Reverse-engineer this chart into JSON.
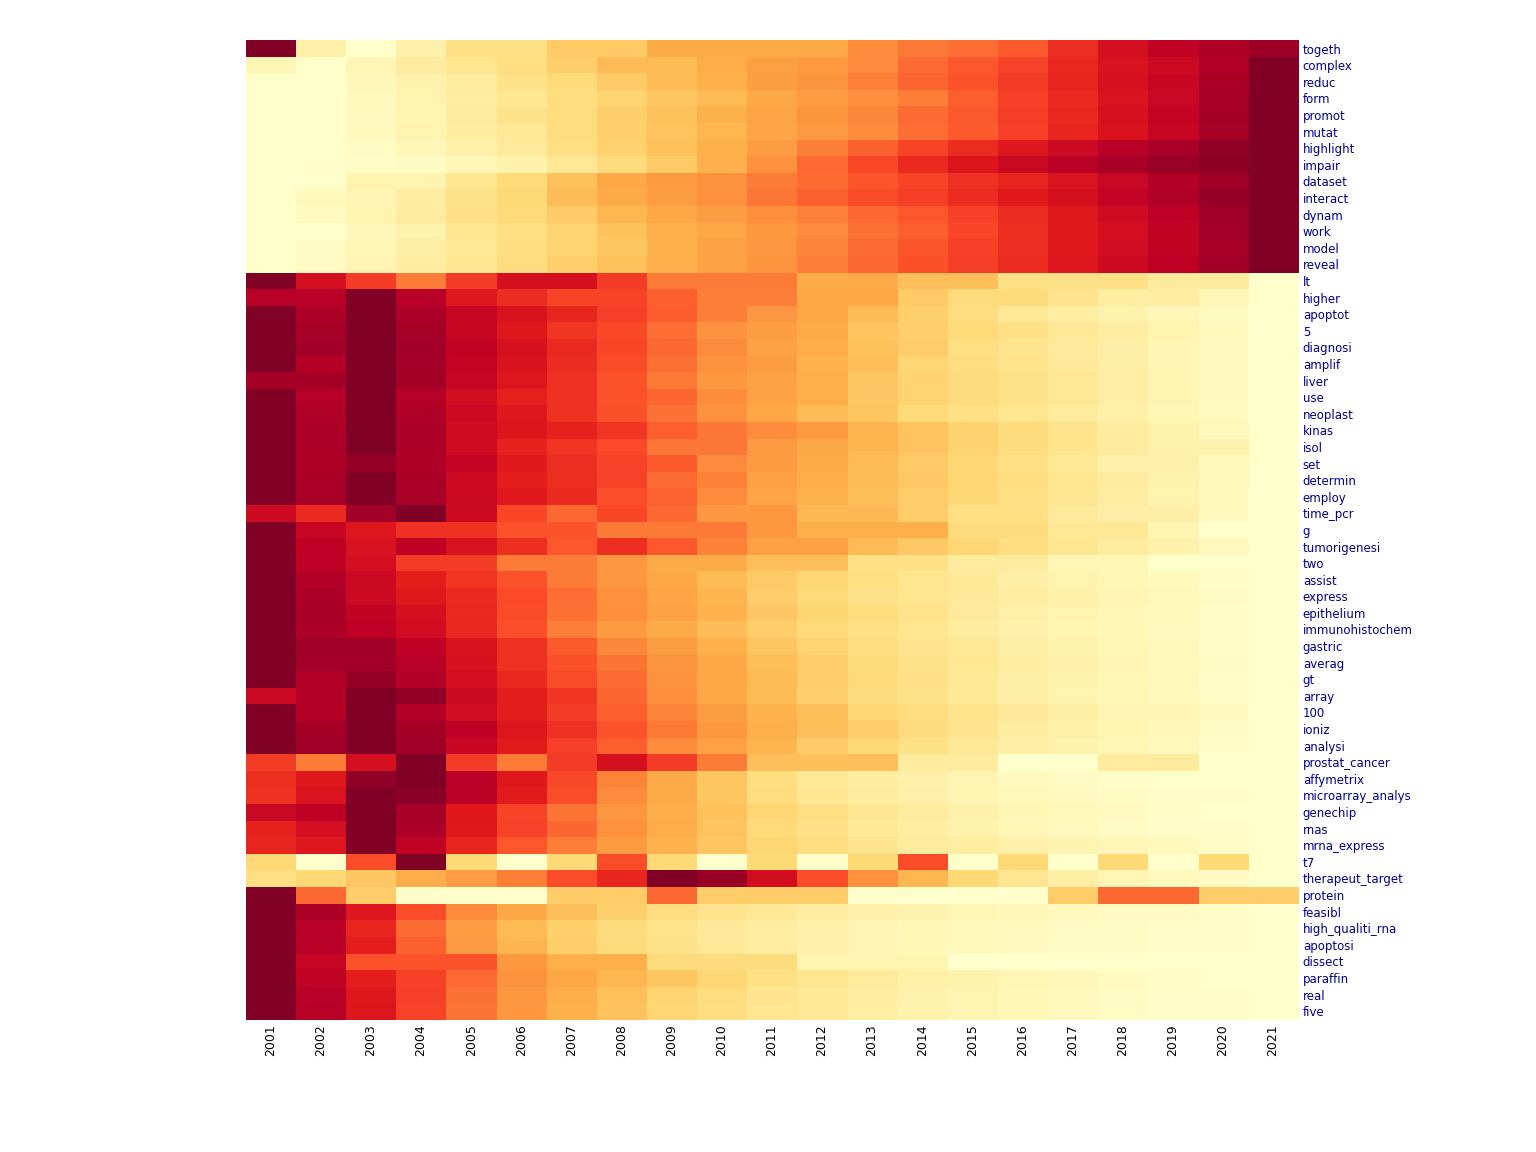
{
  "years": [
    2001,
    2002,
    2003,
    2004,
    2005,
    2006,
    2007,
    2008,
    2009,
    2010,
    2011,
    2012,
    2013,
    2014,
    2015,
    2016,
    2017,
    2018,
    2019,
    2020,
    2021
  ],
  "words_ordered": [
    "togeth",
    "dataset",
    "interact",
    "complex",
    "dynam",
    "work",
    "highlight",
    "promot",
    "mutat",
    "model",
    "reveal",
    "form",
    "reduc",
    "impair",
    "t7",
    "protein",
    "prostat_cancer",
    "lt",
    "g",
    "time_pcr",
    "dissect",
    "higher",
    "two",
    "isol",
    "affymetrix",
    "rnas",
    "microarray_analys",
    "100",
    "liver",
    "tumorigenesi",
    "mrna_express",
    "kinas",
    "set",
    "determin",
    "employ",
    "use",
    "diagnosi",
    "amplif",
    "array",
    "neoplast",
    "5",
    "apoptot",
    "genechip",
    "ioniz",
    "paraffin",
    "assist",
    "epithelium",
    "immunohistochem",
    "gastric",
    "averag",
    "analysi",
    "therapeut_target",
    "gt",
    "real",
    "five",
    "feasibl",
    "high_qualiti_rna",
    "apoptosi",
    "express"
  ],
  "dendro_bg_color": "#666666",
  "heatmap_cmap": "YlOrRd",
  "row_label_color": "#00008B",
  "row_label_fontsize": 8.5,
  "col_label_fontsize": 9,
  "figsize": [
    15.36,
    11.52
  ],
  "dpi": 100
}
